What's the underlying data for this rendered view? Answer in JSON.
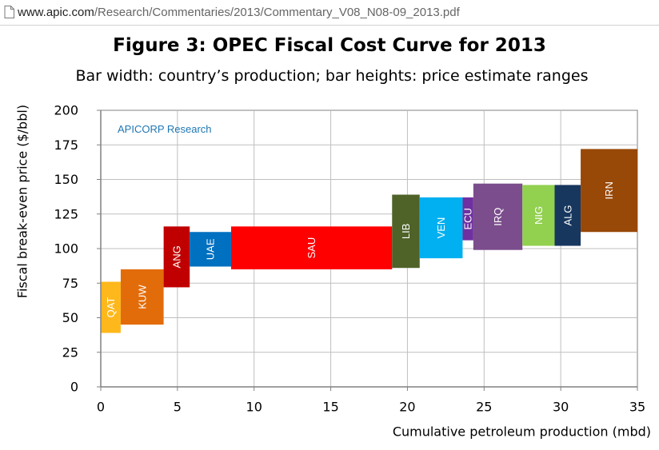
{
  "browser": {
    "url_host": "www.apic.com",
    "url_path": "/Research/Commentaries/2013/Commentary_V08_N08-09_2013.pdf"
  },
  "figure": {
    "title": "Figure 3: OPEC Fiscal Cost Curve for 2013",
    "subtitle": "Bar width: country’s production; bar heights: price estimate ranges"
  },
  "chart_data": {
    "type": "bar",
    "title": "Figure 3: OPEC Fiscal Cost Curve for 2013",
    "subtitle": "Bar width: country’s production; bar heights: price estimate ranges",
    "xlabel": "Cumulative petroleum production (mbd)",
    "ylabel": "Fiscal break-even price ($/bbl)",
    "xlim": [
      0,
      35
    ],
    "ylim": [
      0,
      200
    ],
    "xticks": [
      0,
      5,
      10,
      15,
      20,
      25,
      30,
      35
    ],
    "yticks": [
      0,
      25,
      50,
      75,
      100,
      125,
      150,
      175,
      200
    ],
    "grid": true,
    "annotation": {
      "text": "APICORP Research",
      "color": "#1f77b4"
    },
    "bars": [
      {
        "label": "QAT",
        "x_start": 0.0,
        "x_end": 1.3,
        "low": 39,
        "high": 76,
        "color": "#ffb81c"
      },
      {
        "label": "KUW",
        "x_start": 1.3,
        "x_end": 4.1,
        "low": 45,
        "high": 85,
        "color": "#e36c0a"
      },
      {
        "label": "ANG",
        "x_start": 4.1,
        "x_end": 5.8,
        "low": 72,
        "high": 116,
        "color": "#c00000"
      },
      {
        "label": "UAE",
        "x_start": 5.8,
        "x_end": 8.5,
        "low": 87,
        "high": 112,
        "color": "#0070c0"
      },
      {
        "label": "SAU",
        "x_start": 8.5,
        "x_end": 19.0,
        "low": 85,
        "high": 116,
        "color": "#ff0000"
      },
      {
        "label": "LIB",
        "x_start": 19.0,
        "x_end": 20.8,
        "low": 86,
        "high": 139,
        "color": "#4f6228"
      },
      {
        "label": "VEN",
        "x_start": 20.8,
        "x_end": 23.6,
        "low": 93,
        "high": 137,
        "color": "#00b0f0"
      },
      {
        "label": "ECU",
        "x_start": 23.6,
        "x_end": 24.3,
        "low": 106,
        "high": 137,
        "color": "#7030a0"
      },
      {
        "label": "IRQ",
        "x_start": 24.3,
        "x_end": 27.5,
        "low": 99,
        "high": 147,
        "color": "#7b4d8c"
      },
      {
        "label": "NIG",
        "x_start": 27.5,
        "x_end": 29.6,
        "low": 102,
        "high": 146,
        "color": "#92d050"
      },
      {
        "label": "ALG",
        "x_start": 29.6,
        "x_end": 31.3,
        "low": 102,
        "high": 146,
        "color": "#17375e"
      },
      {
        "label": "IRN",
        "x_start": 31.3,
        "x_end": 35.0,
        "low": 112,
        "high": 172,
        "color": "#984807"
      }
    ]
  }
}
